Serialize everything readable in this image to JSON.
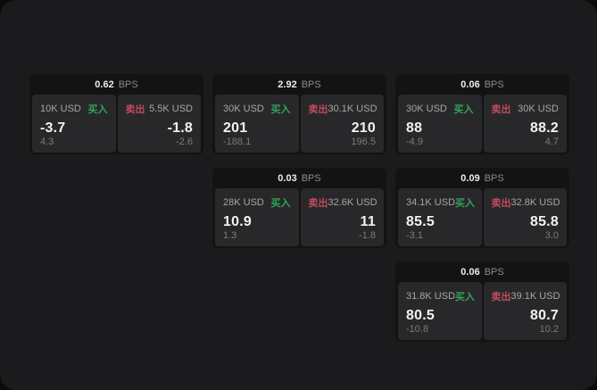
{
  "labels": {
    "buy": "买入",
    "sell": "卖出",
    "bps_unit": "BPS"
  },
  "colors": {
    "page_bg": "#0b0b0b",
    "window_bg": "#1b1b1d",
    "card_bg": "#131314",
    "panel_bg": "#28282a",
    "buy_green": "#2ea558",
    "sell_red": "#c04a5e",
    "value_text": "#f2f2f2",
    "size_label_text": "#a6a6a6",
    "muted_text": "#7b7b7b"
  },
  "cards": [
    {
      "bps": "0.62",
      "buy": {
        "size": "10K USD",
        "value": "-3.7",
        "delta": "4.3"
      },
      "sell": {
        "size": "5.5K USD",
        "value": "-1.8",
        "delta": "-2.6"
      }
    },
    {
      "bps": "2.92",
      "buy": {
        "size": "30K USD",
        "value": "201",
        "delta": "-188.1"
      },
      "sell": {
        "size": "30.1K USD",
        "value": "210",
        "delta": "196.5"
      }
    },
    {
      "bps": "0.06",
      "buy": {
        "size": "30K USD",
        "value": "88",
        "delta": "-4.9"
      },
      "sell": {
        "size": "30K USD",
        "value": "88.2",
        "delta": "4.7"
      }
    },
    {
      "bps": "0.03",
      "buy": {
        "size": "28K USD",
        "value": "10.9",
        "delta": "1.3"
      },
      "sell": {
        "size": "32.6K USD",
        "value": "11",
        "delta": "-1.8"
      }
    },
    {
      "bps": "0.09",
      "buy": {
        "size": "34.1K USD",
        "value": "85.5",
        "delta": "-3.1"
      },
      "sell": {
        "size": "32.8K USD",
        "value": "85.8",
        "delta": "3.0"
      }
    },
    {
      "bps": "0.06",
      "buy": {
        "size": "31.8K USD",
        "value": "80.5",
        "delta": "-10.8"
      },
      "sell": {
        "size": "39.1K USD",
        "value": "80.7",
        "delta": "10.2"
      }
    }
  ]
}
